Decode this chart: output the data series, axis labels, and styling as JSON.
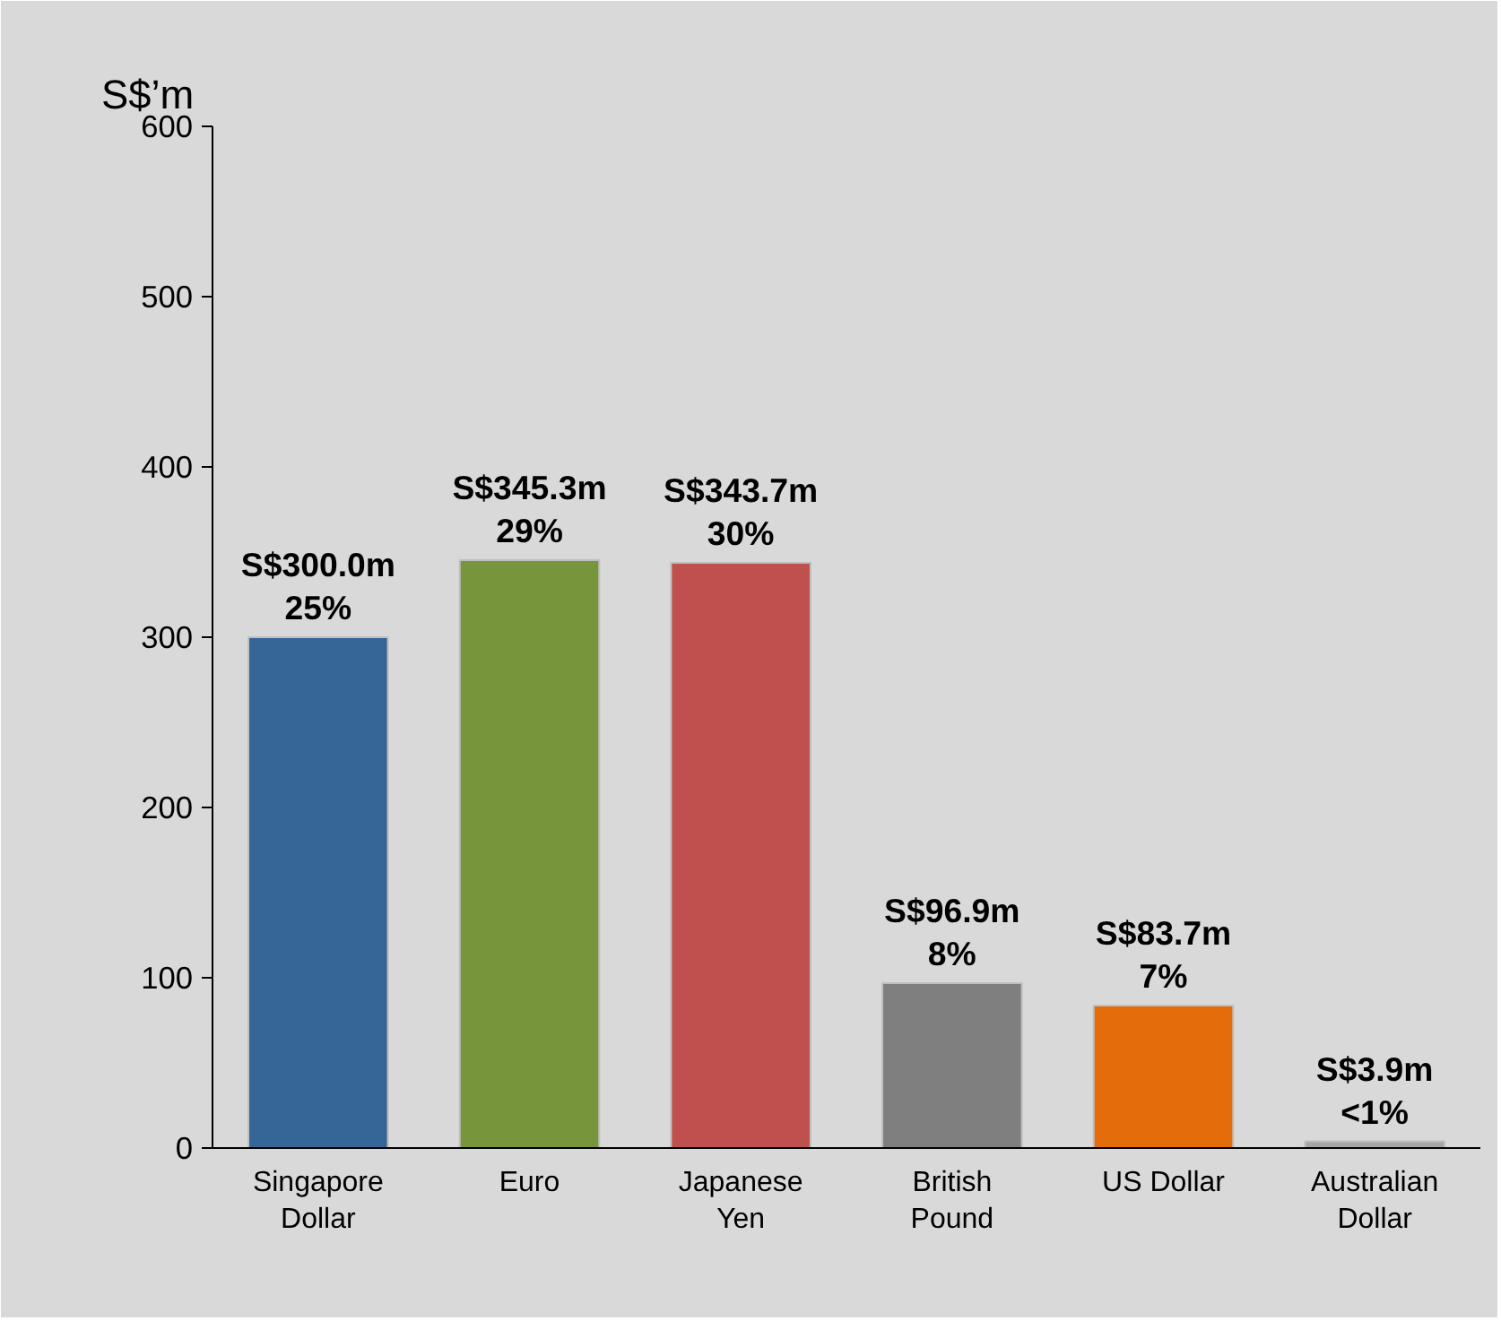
{
  "chart_data": {
    "type": "bar",
    "ylabel": "S$’m",
    "categories": [
      "Singapore\nDollar",
      "Euro",
      "Japanese\nYen",
      "British\nPound",
      "US Dollar",
      "Australian\nDollar"
    ],
    "values": [
      300.0,
      345.3,
      343.7,
      96.9,
      83.7,
      3.9
    ],
    "colors": [
      "#366598",
      "#77963b",
      "#c0504d",
      "#7f7f7f",
      "#e46c0a",
      "#a6a6a6"
    ],
    "value_labels": [
      "S$300.0m",
      "S$345.3m",
      "S$343.7m",
      "S$96.9m",
      "S$83.7m",
      "S$3.9m"
    ],
    "annotations": [
      {
        "text": "25%",
        "x": "Singapore\nDollar",
        "y": 300.0
      },
      {
        "text": "29%",
        "x": "Euro",
        "y": 345.3
      },
      {
        "text": "30%",
        "x": "Japanese\nYen",
        "y": 343.7
      },
      {
        "text": "8%",
        "x": "British\nPound",
        "y": 96.9
      },
      {
        "text": "7%",
        "x": "US Dollar",
        "y": 83.7
      },
      {
        "text": "<1%",
        "x": "Australian\nDollar",
        "y": 3.9
      }
    ],
    "ylim": [
      0,
      600
    ],
    "yticks": [
      0,
      100,
      200,
      300,
      400,
      500,
      600
    ],
    "grid": false
  }
}
